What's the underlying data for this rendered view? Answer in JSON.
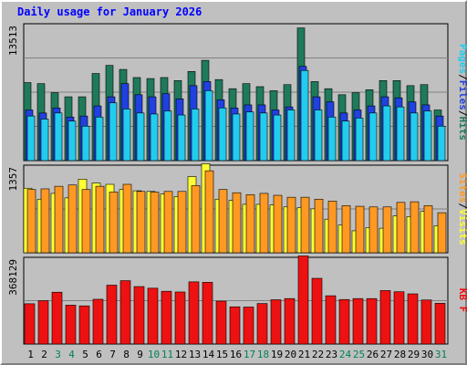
{
  "title": "Daily usage for January 2026",
  "colors": {
    "hits": "#1f7a5a",
    "files": "#2040e0",
    "pages": "#22ccee",
    "visits": "#ffff33",
    "sites": "#ff9922",
    "kbytes": "#ee1111",
    "weekend_label": "#00805a",
    "weekday_label": "#000000",
    "separator": "#000000"
  },
  "chart_data": [
    {
      "type": "bar",
      "max_label": "13513",
      "ymax": 13513,
      "legend": [
        "Pages",
        "/",
        "Files",
        "/",
        "Hits"
      ],
      "categories": [
        "1",
        "2",
        "3",
        "4",
        "5",
        "6",
        "7",
        "8",
        "9",
        "10",
        "11",
        "12",
        "13",
        "14",
        "15",
        "16",
        "17",
        "18",
        "19",
        "20",
        "21",
        "22",
        "23",
        "24",
        "25",
        "26",
        "27",
        "28",
        "29",
        "30",
        "31"
      ],
      "weekend": [
        3,
        4,
        10,
        11,
        17,
        18,
        24,
        25,
        31
      ],
      "series": [
        {
          "name": "Hits",
          "values": [
            7700,
            7600,
            6700,
            6300,
            6300,
            8600,
            9400,
            9000,
            8200,
            8100,
            8200,
            7900,
            8800,
            9900,
            8000,
            7100,
            7600,
            7300,
            6900,
            7500,
            13100,
            7800,
            7100,
            6500,
            6700,
            7000,
            7900,
            7900,
            7400,
            7500,
            5000
          ]
        },
        {
          "name": "Files",
          "values": [
            5000,
            4700,
            5200,
            4300,
            4400,
            5400,
            6300,
            7600,
            6500,
            6300,
            6600,
            6100,
            7400,
            7800,
            6000,
            5200,
            5500,
            5500,
            5000,
            5300,
            9300,
            6300,
            5800,
            4700,
            5000,
            5400,
            6300,
            6200,
            5800,
            5500,
            4400
          ]
        },
        {
          "name": "Pages",
          "values": [
            4400,
            4100,
            4700,
            3900,
            3400,
            4300,
            5700,
            5100,
            4700,
            4600,
            4900,
            4500,
            5100,
            6900,
            5200,
            4600,
            4800,
            4700,
            4500,
            5000,
            8900,
            5000,
            4300,
            3900,
            4200,
            4700,
            5400,
            5300,
            4700,
            4900,
            3400
          ]
        }
      ]
    },
    {
      "type": "bar",
      "max_label": "1357",
      "ymax": 1357,
      "legend": [
        "Sites",
        "/",
        "Visits"
      ],
      "categories": [
        "1",
        "2",
        "3",
        "4",
        "5",
        "6",
        "7",
        "8",
        "9",
        "10",
        "11",
        "12",
        "13",
        "14",
        "15",
        "16",
        "17",
        "18",
        "19",
        "20",
        "21",
        "22",
        "23",
        "24",
        "25",
        "26",
        "27",
        "28",
        "29",
        "30",
        "31"
      ],
      "weekend": [
        3,
        4,
        10,
        11,
        17,
        18,
        24,
        25,
        31
      ],
      "series": [
        {
          "name": "Visits",
          "values": [
            1000,
            830,
            920,
            850,
            1140,
            1080,
            1060,
            980,
            960,
            950,
            910,
            870,
            1180,
            1380,
            830,
            810,
            750,
            750,
            740,
            710,
            700,
            680,
            520,
            430,
            340,
            390,
            380,
            570,
            560,
            640,
            420
          ]
        },
        {
          "name": "Sites",
          "values": [
            980,
            990,
            1030,
            1050,
            980,
            1030,
            940,
            1060,
            950,
            940,
            950,
            950,
            1040,
            1270,
            980,
            930,
            900,
            920,
            890,
            860,
            860,
            830,
            800,
            730,
            720,
            710,
            710,
            780,
            790,
            730,
            620
          ]
        }
      ]
    },
    {
      "type": "bar",
      "max_label": "368129",
      "ymax": 368129,
      "legend": [
        "KB",
        "F"
      ],
      "categories": [
        "1",
        "2",
        "3",
        "4",
        "5",
        "6",
        "7",
        "8",
        "9",
        "10",
        "11",
        "12",
        "13",
        "14",
        "15",
        "16",
        "17",
        "18",
        "19",
        "20",
        "21",
        "22",
        "23",
        "24",
        "25",
        "26",
        "27",
        "28",
        "29",
        "30",
        "31"
      ],
      "weekend": [
        3,
        4,
        10,
        11,
        17,
        18,
        24,
        25,
        31
      ],
      "series": [
        {
          "name": "KB F",
          "values": [
            171000,
            184000,
            220000,
            165000,
            162000,
            190000,
            250000,
            269000,
            244000,
            237000,
            224000,
            221000,
            264000,
            262000,
            182000,
            158000,
            157000,
            172000,
            188000,
            193000,
            374000,
            279000,
            205000,
            189000,
            193000,
            193000,
            227000,
            222000,
            213000,
            187000,
            173000
          ]
        }
      ]
    }
  ]
}
